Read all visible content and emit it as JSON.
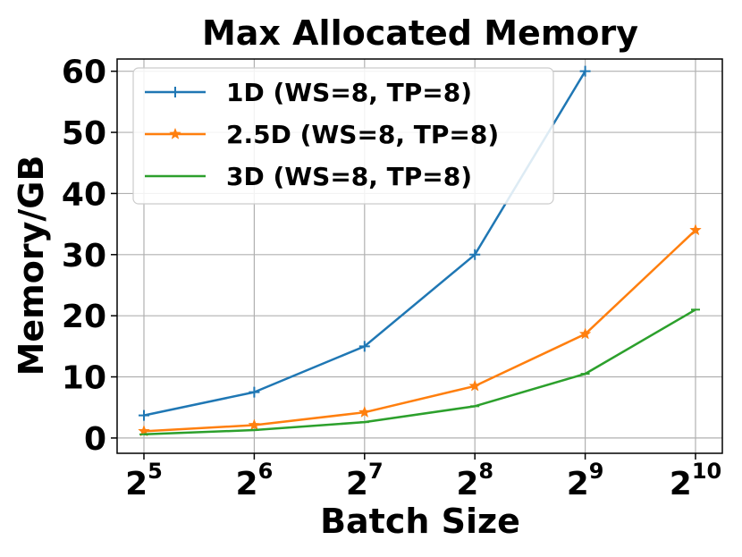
{
  "chart_data": {
    "type": "line",
    "title": "Max Allocated Memory",
    "xlabel": "Batch Size",
    "ylabel": "Memory/GB",
    "x_scale": "log2",
    "x": [
      32,
      64,
      128,
      256,
      512,
      1024
    ],
    "x_tick_labels": [
      {
        "base": "2",
        "exp": "5"
      },
      {
        "base": "2",
        "exp": "6"
      },
      {
        "base": "2",
        "exp": "7"
      },
      {
        "base": "2",
        "exp": "8"
      },
      {
        "base": "2",
        "exp": "9"
      },
      {
        "base": "2",
        "exp": "10"
      }
    ],
    "ylim": [
      -2.5,
      62
    ],
    "y_ticks": [
      0,
      10,
      20,
      30,
      40,
      50,
      60
    ],
    "grid": true,
    "legend_position": "top-left",
    "series": [
      {
        "name": "1D (WS=8, TP=8)",
        "color": "#1f77b4",
        "marker": "plus",
        "values": [
          3.7,
          7.5,
          15.0,
          30.0,
          60.0,
          null
        ]
      },
      {
        "name": "2.5D (WS=8, TP=8)",
        "color": "#ff7f0e",
        "marker": "star",
        "values": [
          1.1,
          2.1,
          4.2,
          8.5,
          17.0,
          34.0
        ]
      },
      {
        "name": "3D (WS=8, TP=8)",
        "color": "#2ca02c",
        "marker": "tick",
        "values": [
          0.6,
          1.3,
          2.6,
          5.2,
          10.5,
          21.0
        ]
      }
    ]
  }
}
